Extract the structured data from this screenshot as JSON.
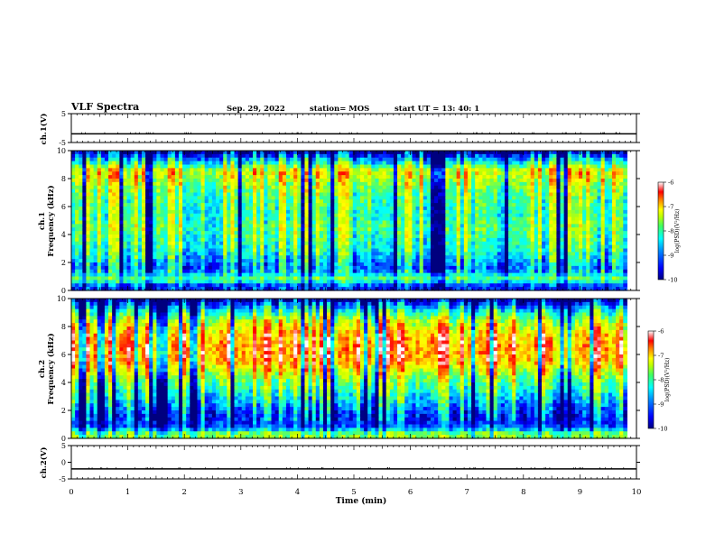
{
  "header": {
    "title": "VLF Spectra",
    "date": "Sep. 29, 2022",
    "station": "station= MOS",
    "start": "start  UT =   13: 40: 1"
  },
  "chart_data": [
    {
      "type": "line",
      "panel": "ch1-waveform",
      "ylabel": "ch.1(V)",
      "ylim": [
        -5,
        5
      ],
      "yticks": [
        5,
        -5
      ],
      "series": [
        {
          "values": [
            -2,
            -2,
            -2,
            -2,
            -2,
            -2,
            -2,
            -2,
            -2,
            -2,
            -2
          ]
        }
      ],
      "x": [
        0,
        1,
        2,
        3,
        4,
        5,
        6,
        7,
        8,
        9,
        10
      ]
    },
    {
      "type": "heatmap",
      "panel": "ch1-spectrogram",
      "ylabel": "ch.1\nFrequency (kHz)",
      "ylim": [
        0,
        10
      ],
      "yticks": [
        0,
        2,
        4,
        6,
        8,
        10
      ],
      "xlim": [
        0,
        9.83
      ],
      "colorbar": {
        "label": "log(PSD)(V²/Hz)",
        "ticks": [
          -6,
          -7,
          -8,
          -9,
          -10
        ],
        "range": [
          -10,
          -6
        ]
      },
      "freq_profile": [
        -9.5,
        -8.2,
        -9.3,
        -8.6,
        -8.3,
        -8.5,
        -8.4,
        -8.1,
        -7.6,
        -9.0,
        -10.0
      ],
      "profile_freqs_khz": [
        0.3,
        0.8,
        1.5,
        3,
        4.5,
        5.5,
        6.5,
        7.5,
        8.5,
        9.3,
        9.9
      ]
    },
    {
      "type": "heatmap",
      "panel": "ch2-spectrogram",
      "ylabel": "ch.2\nFrequency (kHz)",
      "ylim": [
        0,
        10
      ],
      "yticks": [
        0,
        2,
        4,
        6,
        8,
        10
      ],
      "xlim": [
        0,
        9.83
      ],
      "colorbar": {
        "label": "log(PSD)(V²/Hz)",
        "ticks": [
          -6,
          -7,
          -8,
          -9,
          -10
        ],
        "range": [
          -10,
          -6
        ]
      },
      "freq_profile": [
        -8.0,
        -9.3,
        -9.6,
        -8.8,
        -8.0,
        -7.2,
        -7.0,
        -7.3,
        -8.0,
        -9.0,
        -10.0
      ],
      "profile_freqs_khz": [
        0.3,
        0.8,
        1.5,
        3,
        4.5,
        5.5,
        6.5,
        7.5,
        8.5,
        9.3,
        9.9
      ]
    },
    {
      "type": "line",
      "panel": "ch2-waveform",
      "ylabel": "ch.2(V)",
      "ylim": [
        -5,
        5
      ],
      "yticks": [
        5,
        0,
        -5
      ],
      "series": [
        {
          "values": [
            -2,
            -2,
            -2,
            -2,
            -2,
            -2,
            -2,
            -2,
            -2,
            -2,
            -2
          ]
        }
      ],
      "x": [
        0,
        1,
        2,
        3,
        4,
        5,
        6,
        7,
        8,
        9,
        10
      ]
    }
  ],
  "xaxis": {
    "label": "Time (min)",
    "ticks": [
      "0",
      "1",
      "2",
      "3",
      "4",
      "5",
      "6",
      "7",
      "8",
      "9",
      "10"
    ],
    "xlim": [
      0,
      10
    ]
  },
  "colors": {
    "colormap": [
      "#00007f",
      "#0000ff",
      "#0080ff",
      "#00ffff",
      "#40ff80",
      "#c0ff00",
      "#ffff00",
      "#ff8000",
      "#ff0000",
      "#ffffff"
    ]
  }
}
